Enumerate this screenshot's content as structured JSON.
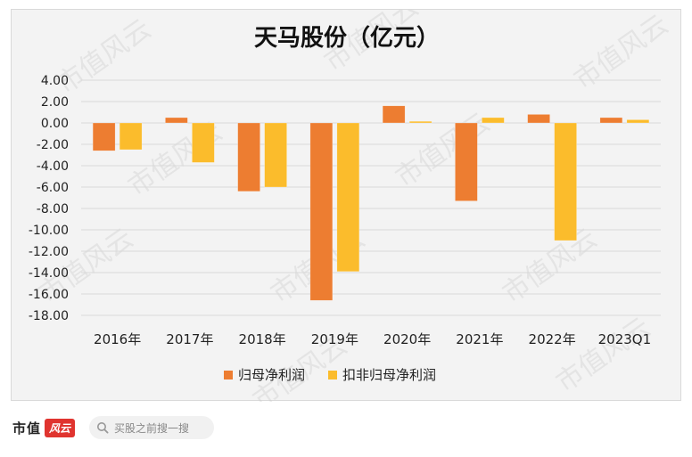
{
  "chart_data": {
    "type": "bar",
    "title": "天马股份（亿元）",
    "categories": [
      "2016年",
      "2017年",
      "2018年",
      "2019年",
      "2020年",
      "2021年",
      "2022年",
      "2023Q1"
    ],
    "series": [
      {
        "name": "归母净利润",
        "color": "#ed7d31",
        "values": [
          -2.6,
          0.5,
          -6.4,
          -16.6,
          1.6,
          -7.3,
          0.8,
          0.5
        ]
      },
      {
        "name": "扣非归母净利润",
        "color": "#fbbc2c",
        "values": [
          -2.5,
          -3.7,
          -6.0,
          -13.9,
          0.15,
          0.5,
          -11.0,
          0.3
        ]
      }
    ],
    "ylim": [
      -18,
      4
    ],
    "yticks": [
      "4.00",
      "2.00",
      "0.00",
      "-2.00",
      "-4.00",
      "-6.00",
      "-8.00",
      "-10.00",
      "-12.00",
      "-14.00",
      "-16.00",
      "-18.00"
    ],
    "ytick_values": [
      4,
      2,
      0,
      -2,
      -4,
      -6,
      -8,
      -10,
      -12,
      -14,
      -16,
      -18
    ],
    "grid": true,
    "legend_position": "bottom"
  },
  "watermark": "市值风云",
  "footer": {
    "logo_text": "市值",
    "logo_badge": "风云",
    "search_placeholder": "买股之前搜一搜",
    "search_icon": "search-icon"
  }
}
